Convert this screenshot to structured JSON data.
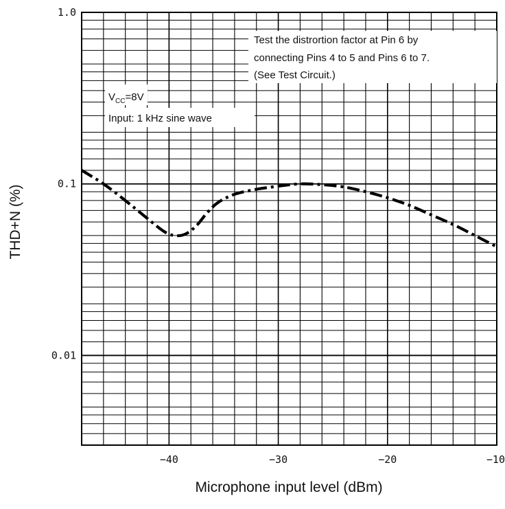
{
  "chart_data": {
    "type": "line",
    "title": "",
    "xlabel": "Microphone input level (dBm)",
    "ylabel": "THD+N (%)",
    "xlim": [
      -48,
      -10
    ],
    "ylim": [
      0.003,
      1.0
    ],
    "y_scale": "log",
    "grid": true,
    "x_ticks": [
      {
        "value": -40,
        "label": "−40"
      },
      {
        "value": -30,
        "label": "−30"
      },
      {
        "value": -20,
        "label": "−20"
      },
      {
        "value": -10,
        "label": "−10"
      }
    ],
    "y_ticks": [
      {
        "value": 1.0,
        "label": "1.0"
      },
      {
        "value": 0.1,
        "label": "0.1"
      },
      {
        "value": 0.01,
        "label": "0.01"
      }
    ],
    "series": [
      {
        "name": "",
        "line_style": "dash-dot",
        "x": [
          -48,
          -46,
          -44,
          -42,
          -40.5,
          -39.5,
          -38.5,
          -37.5,
          -36.5,
          -35.5,
          -34,
          -32,
          -30,
          -28,
          -26,
          -24,
          -22,
          -20,
          -18,
          -16,
          -14,
          -12,
          -10
        ],
        "y": [
          0.12,
          0.1,
          0.08,
          0.063,
          0.053,
          0.05,
          0.051,
          0.057,
          0.068,
          0.078,
          0.087,
          0.093,
          0.097,
          0.1,
          0.099,
          0.096,
          0.09,
          0.083,
          0.075,
          0.066,
          0.058,
          0.05,
          0.043
        ]
      }
    ],
    "annotations": {
      "test_note": [
        "Test the distrortion factor at Pin 6 by",
        "connecting Pins 4 to 5 and Pins 6 to 7.",
        "(See Test Circuit.)"
      ],
      "vcc_label": "V",
      "vcc_subscript": "CC",
      "vcc_value": "=8V",
      "input_note": "Input: 1 kHz sine wave"
    }
  }
}
